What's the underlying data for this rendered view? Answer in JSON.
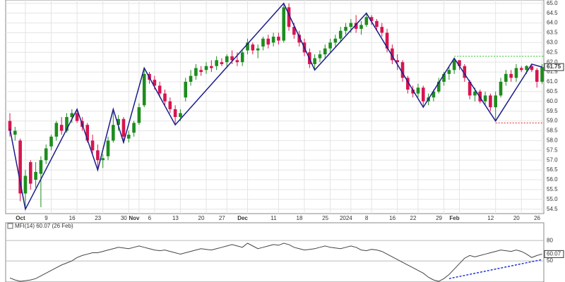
{
  "chart_data": [
    {
      "type": "candlestick",
      "categories": [
        null,
        null,
        null,
        "Oct",
        null,
        null,
        null,
        null,
        "9",
        null,
        null,
        null,
        null,
        "16",
        null,
        null,
        null,
        null,
        "23",
        null,
        null,
        null,
        null,
        "30",
        null,
        "Nov",
        null,
        null,
        "6",
        null,
        null,
        null,
        null,
        "13",
        null,
        null,
        null,
        null,
        "20",
        null,
        null,
        null,
        "27",
        null,
        null,
        null,
        "Dec",
        null,
        null,
        null,
        null,
        null,
        "11",
        null,
        null,
        null,
        null,
        "18",
        null,
        null,
        null,
        null,
        "25",
        null,
        null,
        null,
        "2024",
        null,
        null,
        null,
        "8",
        null,
        null,
        null,
        null,
        "16",
        null,
        null,
        null,
        "22",
        null,
        null,
        null,
        null,
        "29",
        null,
        null,
        "Feb",
        null,
        null,
        null,
        null,
        null,
        null,
        "12",
        null,
        null,
        null,
        null,
        "20",
        null,
        null,
        null,
        "26"
      ],
      "open": [
        59.0,
        58.3,
        58.0,
        55.3,
        56.9,
        56.0,
        56.3,
        57.0,
        57.7,
        58.2,
        58.8,
        58.5,
        59.2,
        59.4,
        59.0,
        58.8,
        58.0,
        57.5,
        57.0,
        57.2,
        58.0,
        58.8,
        59.1,
        58.1,
        58.4,
        58.9,
        59.8,
        61.4,
        61.1,
        60.8,
        60.4,
        60.0,
        59.6,
        59.2,
        60.2,
        61.0,
        61.3,
        61.6,
        61.6,
        61.8,
        61.8,
        62.0,
        62.0,
        62.3,
        62.1,
        62.0,
        62.6,
        62.9,
        62.6,
        62.8,
        63.2,
        63.0,
        63.3,
        63.1,
        64.8,
        63.8,
        63.4,
        63.0,
        62.5,
        61.9,
        62.2,
        62.4,
        62.7,
        63.0,
        63.2,
        63.6,
        63.8,
        64.0,
        63.7,
        63.9,
        64.3,
        64.1,
        63.8,
        63.5,
        62.7,
        62.1,
        62.0,
        61.2,
        60.6,
        60.4,
        60.7,
        60.0,
        60.2,
        60.5,
        61.0,
        61.4,
        61.6,
        62.1,
        61.8,
        61.0,
        60.3,
        60.5,
        60.0,
        60.3,
        59.7,
        60.3,
        61.0,
        61.4,
        61.2,
        61.7,
        61.6,
        61.8,
        61.6,
        61.0
      ],
      "high": [
        59.4,
        58.7,
        58.1,
        56.5,
        57.0,
        56.9,
        57.2,
        57.8,
        58.3,
        59.0,
        59.2,
        59.4,
        59.6,
        59.6,
        59.2,
        58.9,
        58.3,
        57.8,
        57.3,
        58.2,
        59.6,
        59.3,
        59.2,
        58.5,
        59.0,
        59.9,
        61.7,
        61.5,
        61.3,
        61.0,
        60.6,
        60.2,
        59.8,
        59.6,
        61.2,
        61.6,
        61.9,
        61.8,
        62.0,
        62.1,
        62.3,
        62.2,
        62.4,
        62.6,
        62.5,
        62.6,
        63.2,
        63.0,
        62.9,
        63.3,
        63.4,
        63.5,
        63.5,
        65.0,
        65.0,
        64.0,
        63.6,
        63.2,
        62.7,
        62.4,
        62.6,
        62.9,
        63.2,
        63.4,
        63.8,
        64.0,
        64.2,
        64.4,
        64.1,
        64.5,
        64.4,
        64.2,
        64.0,
        63.7,
        62.9,
        62.4,
        62.1,
        61.3,
        60.8,
        60.9,
        60.8,
        60.4,
        60.6,
        61.2,
        61.5,
        61.8,
        62.2,
        62.1,
        61.9,
        61.1,
        60.7,
        60.6,
        60.5,
        60.4,
        60.5,
        61.2,
        61.6,
        61.6,
        61.9,
        61.8,
        61.85,
        61.9,
        61.7,
        61.9
      ],
      "low": [
        58.2,
        58.0,
        54.9,
        54.5,
        55.5,
        55.6,
        54.6,
        56.8,
        57.5,
        58.0,
        58.3,
        58.4,
        58.9,
        58.9,
        58.5,
        57.9,
        57.3,
        56.5,
        56.6,
        57.0,
        57.9,
        58.5,
        57.9,
        57.9,
        58.2,
        58.8,
        59.7,
        60.9,
        60.6,
        60.2,
        59.8,
        59.4,
        58.8,
        59.0,
        60.0,
        60.8,
        61.1,
        61.3,
        61.4,
        61.5,
        61.6,
        61.8,
        61.7,
        61.9,
        61.8,
        61.8,
        62.4,
        62.4,
        62.2,
        62.6,
        62.7,
        62.8,
        62.9,
        63.0,
        63.6,
        63.2,
        62.8,
        62.3,
        61.7,
        61.6,
        62.0,
        62.2,
        62.5,
        62.8,
        63.0,
        63.4,
        63.5,
        63.5,
        63.4,
        63.8,
        63.9,
        63.6,
        63.3,
        62.5,
        61.9,
        61.6,
        61.0,
        60.4,
        60.2,
        60.2,
        59.7,
        59.8,
        60.0,
        60.4,
        60.8,
        61.1,
        61.4,
        61.6,
        61.0,
        60.1,
        60.0,
        59.9,
        59.8,
        59.5,
        59.0,
        60.2,
        60.8,
        61.0,
        61.0,
        61.5,
        61.4,
        61.5,
        60.7,
        60.9
      ],
      "close": [
        58.5,
        58.5,
        55.3,
        56.2,
        55.8,
        56.4,
        57.0,
        57.6,
        58.2,
        58.9,
        58.5,
        59.2,
        59.4,
        59.0,
        58.7,
        58.0,
        57.5,
        57.0,
        57.1,
        58.0,
        58.8,
        59.1,
        58.2,
        58.3,
        58.9,
        59.7,
        61.4,
        61.1,
        60.8,
        60.4,
        60.0,
        59.6,
        59.2,
        59.4,
        61.0,
        61.3,
        61.7,
        61.5,
        61.8,
        61.7,
        62.1,
        61.9,
        62.3,
        62.1,
        62.0,
        62.5,
        63.0,
        62.6,
        62.7,
        63.2,
        62.9,
        63.3,
        63.1,
        64.8,
        63.8,
        63.4,
        63.0,
        62.5,
        61.9,
        62.2,
        62.4,
        62.7,
        63.0,
        63.2,
        63.6,
        63.8,
        64.0,
        63.7,
        63.9,
        64.3,
        64.1,
        63.8,
        63.5,
        62.7,
        62.1,
        62.0,
        61.2,
        60.6,
        60.4,
        60.7,
        60.0,
        60.2,
        60.5,
        61.0,
        61.4,
        61.6,
        62.1,
        61.8,
        61.2,
        60.3,
        60.5,
        60.0,
        60.3,
        59.7,
        60.3,
        61.0,
        61.4,
        61.2,
        61.7,
        61.6,
        61.8,
        61.6,
        61.0,
        61.75
      ],
      "up_color": "#1e8c1e",
      "down_color": "#d6154f",
      "ylim": [
        54.2,
        65.1
      ],
      "yticks": [
        54.5,
        {
          "value": 55,
          "label": "55.0"
        },
        55.5,
        {
          "value": 56,
          "label": "56.0"
        },
        56.5,
        {
          "value": 57,
          "label": "57.0"
        },
        57.5,
        {
          "value": 58,
          "label": "58.0"
        },
        58.5,
        {
          "value": 59,
          "label": "59.0"
        },
        59.5,
        {
          "value": 60,
          "label": "60.0"
        },
        60.5,
        {
          "value": 61,
          "label": "61.0"
        },
        61.5,
        {
          "value": 62,
          "label": "62.0"
        },
        62.5,
        {
          "value": 63,
          "label": "63.0"
        },
        63.5,
        {
          "value": 64,
          "label": "64.0"
        },
        64.5,
        {
          "value": 65,
          "label": "65.0"
        }
      ],
      "grid": true,
      "zigzag": {
        "color": "#1c1c8c",
        "x": [
          0,
          3,
          13,
          17,
          20,
          22,
          26,
          32,
          53,
          59,
          69,
          80,
          86,
          94,
          101,
          103
        ],
        "values": [
          58.6,
          54.5,
          59.6,
          56.5,
          59.6,
          57.9,
          61.7,
          58.8,
          65.0,
          61.6,
          64.5,
          59.7,
          62.2,
          59.0,
          61.9,
          61.75
        ]
      },
      "levels": [
        {
          "color": "#22c022",
          "x": [
            86,
            103
          ],
          "value": 62.3
        },
        {
          "color": "#e02020",
          "x": [
            94,
            103
          ],
          "value": 58.9
        }
      ]
    },
    {
      "type": "line",
      "title": "MFI(14) 60.07 (26 Feb)",
      "color": "#444444",
      "values": [
        25,
        22,
        20,
        21,
        22,
        24,
        28,
        32,
        36,
        40,
        44,
        47,
        50,
        55,
        58,
        60,
        62,
        62,
        64,
        66,
        68,
        70,
        69,
        68,
        70,
        72,
        70,
        68,
        66,
        65,
        66,
        64,
        62,
        60,
        62,
        64,
        66,
        68,
        67,
        66,
        68,
        70,
        72,
        74,
        72,
        70,
        76,
        72,
        68,
        70,
        72,
        74,
        73,
        76,
        74,
        70,
        68,
        66,
        67,
        68,
        70,
        72,
        70,
        69,
        68,
        70,
        72,
        70,
        66,
        65,
        67,
        66,
        64,
        60,
        56,
        52,
        48,
        44,
        40,
        36,
        32,
        26,
        22,
        20,
        24,
        30,
        38,
        46,
        54,
        58,
        56,
        58,
        60,
        62,
        64,
        66,
        65,
        64,
        66,
        64,
        60,
        55,
        58,
        60.07
      ],
      "trend": {
        "color": "#2233dd",
        "x": [
          85,
          103
        ],
        "values": [
          24,
          52
        ]
      },
      "ylim": [
        19,
        104
      ],
      "yticks": [
        50,
        80
      ]
    }
  ]
}
